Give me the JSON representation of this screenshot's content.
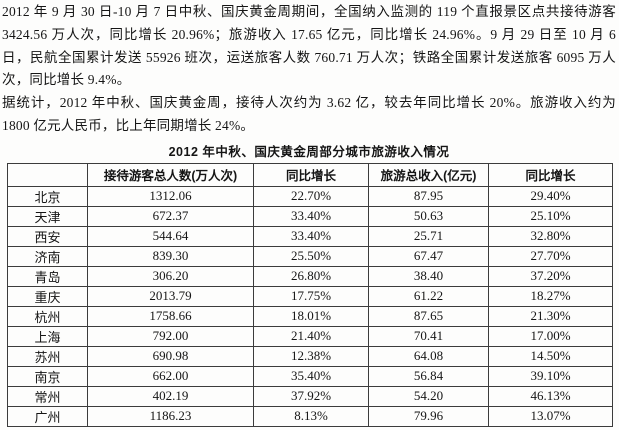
{
  "page": {
    "background": "#fdfdfc",
    "text_color": "#151515",
    "border_color": "#3c3c3c"
  },
  "paragraphs": [
    "2012 年 9 月 30 日-10 月 7 日中秋、国庆黄金周期间，全国纳入监测的 119 个直报景区点共接待游客 3424.56 万人次，同比增长 20.96%；旅游收入 17.65 亿元，同比增长 24.96%。9 月 29 日至 10 月 6 日，民航全国累计发送 55926 班次，运送旅客人数 760.71 万人次；铁路全国累计发送旅客 6095 万人次，同比增长 9.4%。",
    "据统计，2012 年中秋、国庆黄金周，接待人次约为 3.62 亿，较去年同比增长 20%。旅游收入约为 1800 亿元人民币，比上年同期增长 24%。"
  ],
  "table": {
    "title": "2012 年中秋、国庆黄金周部分城市旅游收入情况",
    "headers": [
      "",
      "接待游客总人数(万人次)",
      "同比增长",
      "旅游总收入(亿元)",
      "同比增长"
    ],
    "rows": [
      [
        "北京",
        "1312.06",
        "22.70%",
        "87.95",
        "29.40%"
      ],
      [
        "天津",
        "672.37",
        "33.40%",
        "50.63",
        "25.10%"
      ],
      [
        "西安",
        "544.64",
        "33.40%",
        "25.71",
        "32.80%"
      ],
      [
        "济南",
        "839.30",
        "25.50%",
        "67.47",
        "27.70%"
      ],
      [
        "青岛",
        "306.20",
        "26.80%",
        "38.40",
        "37.20%"
      ],
      [
        "重庆",
        "2013.79",
        "17.75%",
        "61.22",
        "18.27%"
      ],
      [
        "杭州",
        "1758.66",
        "18.01%",
        "87.65",
        "21.30%"
      ],
      [
        "上海",
        "792.00",
        "21.40%",
        "70.41",
        "17.00%"
      ],
      [
        "苏州",
        "690.98",
        "12.38%",
        "64.08",
        "14.50%"
      ],
      [
        "南京",
        "662.00",
        "35.40%",
        "56.84",
        "39.10%"
      ],
      [
        "常州",
        "402.19",
        "37.92%",
        "54.20",
        "46.13%"
      ],
      [
        "广州",
        "1186.23",
        "8.13%",
        "79.96",
        "13.07%"
      ]
    ]
  }
}
